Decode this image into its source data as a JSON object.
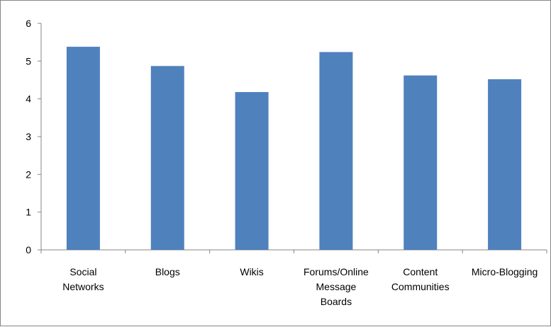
{
  "chart_data": {
    "type": "bar",
    "categories": [
      [
        "Social",
        "Networks"
      ],
      [
        "Blogs"
      ],
      [
        "Wikis"
      ],
      [
        "Forums/Online",
        "Message",
        "Boards"
      ],
      [
        "Content",
        "Communities"
      ],
      [
        "Micro-Blogging"
      ]
    ],
    "values": [
      5.38,
      4.87,
      4.18,
      5.24,
      4.62,
      4.52
    ],
    "ylim": [
      0,
      6
    ],
    "yticks": [
      "0",
      "1",
      "2",
      "3",
      "4",
      "5",
      "6"
    ],
    "grid": false,
    "bar_color": "#4f81bd",
    "axis_color": "#868686"
  }
}
